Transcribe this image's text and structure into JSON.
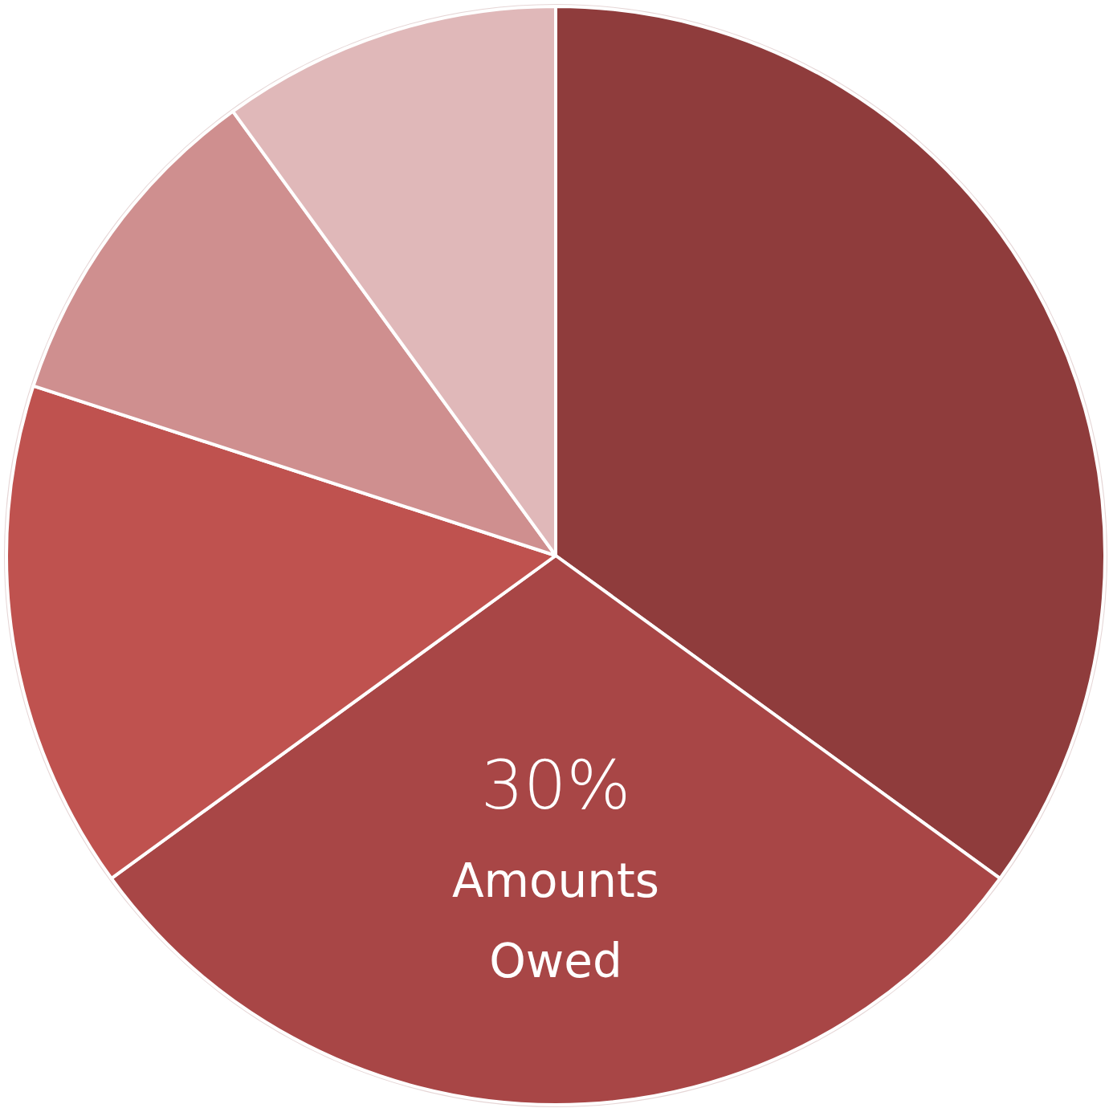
{
  "chart_data": {
    "type": "pie",
    "categories": [
      null,
      "Amounts Owed",
      null,
      null,
      null
    ],
    "values": [
      35,
      30,
      15,
      10,
      10
    ],
    "colors": [
      "#8f3c3c",
      "#a84646",
      "#bf524f",
      "#cf8f8f",
      "#e0b8b9"
    ],
    "value_labels": [
      null,
      "30%",
      null,
      null,
      null
    ]
  }
}
